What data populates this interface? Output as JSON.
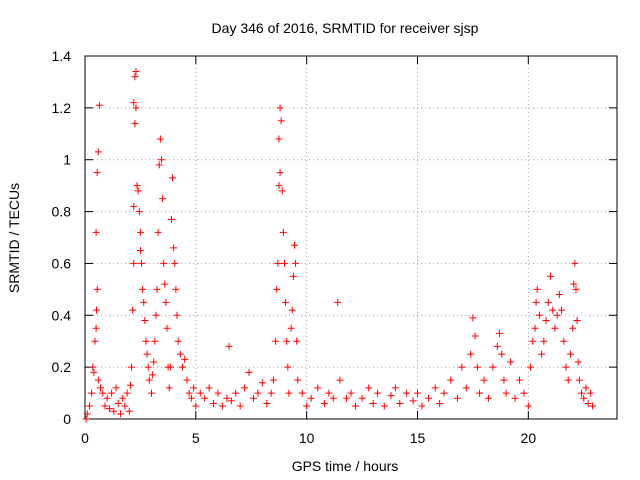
{
  "chart_data": {
    "type": "scatter",
    "title": "Day 346 of 2016, SRMTID for receiver sjsp",
    "xlabel": "GPS time / hours",
    "ylabel": "SRMTID / TECUs",
    "xlim": [
      0,
      24
    ],
    "ylim": [
      0,
      1.4
    ],
    "xticks": [
      0,
      5,
      10,
      15,
      20
    ],
    "xtick_labels": [
      "0",
      "5",
      "10",
      "15",
      "20"
    ],
    "yticks": [
      0,
      0.2,
      0.4,
      0.6,
      0.8,
      1.0,
      1.2,
      1.4
    ],
    "ytick_labels": [
      "0",
      "0.2",
      "0.4",
      "0.6",
      "0.8",
      "1",
      "1.2",
      "1.4"
    ],
    "grid": true,
    "marker": "+",
    "series": [
      {
        "name": "SRMTID",
        "color": "#ff0000",
        "points": [
          [
            0.05,
            0.0
          ],
          [
            0.1,
            0.02
          ],
          [
            0.2,
            0.05
          ],
          [
            0.3,
            0.1
          ],
          [
            0.35,
            0.2
          ],
          [
            0.4,
            0.18
          ],
          [
            0.45,
            0.3
          ],
          [
            0.5,
            0.35
          ],
          [
            0.52,
            0.42
          ],
          [
            0.55,
            0.5
          ],
          [
            0.5,
            0.72
          ],
          [
            0.55,
            0.95
          ],
          [
            0.6,
            1.03
          ],
          [
            0.65,
            1.21
          ],
          [
            0.6,
            0.15
          ],
          [
            0.7,
            0.12
          ],
          [
            0.8,
            0.1
          ],
          [
            0.9,
            0.05
          ],
          [
            1.0,
            0.08
          ],
          [
            1.1,
            0.04
          ],
          [
            1.2,
            0.1
          ],
          [
            1.3,
            0.03
          ],
          [
            1.4,
            0.12
          ],
          [
            1.5,
            0.06
          ],
          [
            1.6,
            0.02
          ],
          [
            1.7,
            0.08
          ],
          [
            1.8,
            0.05
          ],
          [
            1.9,
            0.1
          ],
          [
            2.0,
            0.03
          ],
          [
            2.05,
            0.13
          ],
          [
            2.1,
            0.2
          ],
          [
            2.15,
            0.42
          ],
          [
            2.2,
            0.6
          ],
          [
            2.2,
            0.82
          ],
          [
            2.25,
            1.14
          ],
          [
            2.2,
            1.22
          ],
          [
            2.25,
            1.32
          ],
          [
            2.3,
            1.34
          ],
          [
            2.3,
            1.2
          ],
          [
            2.35,
            0.9
          ],
          [
            2.4,
            0.88
          ],
          [
            2.45,
            0.8
          ],
          [
            2.5,
            0.72
          ],
          [
            2.5,
            0.65
          ],
          [
            2.55,
            0.6
          ],
          [
            2.6,
            0.5
          ],
          [
            2.65,
            0.45
          ],
          [
            2.7,
            0.38
          ],
          [
            2.75,
            0.3
          ],
          [
            2.8,
            0.25
          ],
          [
            2.85,
            0.2
          ],
          [
            2.9,
            0.15
          ],
          [
            3.0,
            0.1
          ],
          [
            3.05,
            0.17
          ],
          [
            3.1,
            0.22
          ],
          [
            3.15,
            0.3
          ],
          [
            3.2,
            0.4
          ],
          [
            3.25,
            0.5
          ],
          [
            3.3,
            0.72
          ],
          [
            3.35,
            0.98
          ],
          [
            3.4,
            1.08
          ],
          [
            3.45,
            1.0
          ],
          [
            3.5,
            0.85
          ],
          [
            3.55,
            0.6
          ],
          [
            3.6,
            0.52
          ],
          [
            3.65,
            0.45
          ],
          [
            3.7,
            0.35
          ],
          [
            3.75,
            0.2
          ],
          [
            3.8,
            0.12
          ],
          [
            3.85,
            0.2
          ],
          [
            3.9,
            0.77
          ],
          [
            3.95,
            0.93
          ],
          [
            4.0,
            0.66
          ],
          [
            4.05,
            0.6
          ],
          [
            4.1,
            0.5
          ],
          [
            4.15,
            0.4
          ],
          [
            4.2,
            0.3
          ],
          [
            4.3,
            0.25
          ],
          [
            4.4,
            0.2
          ],
          [
            4.5,
            0.23
          ],
          [
            4.6,
            0.15
          ],
          [
            4.7,
            0.1
          ],
          [
            4.8,
            0.08
          ],
          [
            4.9,
            0.12
          ],
          [
            5.0,
            0.05
          ],
          [
            5.2,
            0.1
          ],
          [
            5.4,
            0.08
          ],
          [
            5.6,
            0.12
          ],
          [
            5.8,
            0.06
          ],
          [
            6.0,
            0.1
          ],
          [
            6.2,
            0.05
          ],
          [
            6.4,
            0.08
          ],
          [
            6.5,
            0.28
          ],
          [
            6.6,
            0.07
          ],
          [
            6.8,
            0.1
          ],
          [
            7.0,
            0.05
          ],
          [
            7.2,
            0.12
          ],
          [
            7.4,
            0.18
          ],
          [
            7.6,
            0.08
          ],
          [
            7.8,
            0.1
          ],
          [
            8.0,
            0.14
          ],
          [
            8.2,
            0.06
          ],
          [
            8.4,
            0.1
          ],
          [
            8.5,
            0.15
          ],
          [
            8.6,
            0.3
          ],
          [
            8.65,
            0.5
          ],
          [
            8.7,
            0.6
          ],
          [
            8.75,
            0.9
          ],
          [
            8.8,
            0.95
          ],
          [
            8.75,
            1.08
          ],
          [
            8.8,
            1.2
          ],
          [
            8.85,
            1.15
          ],
          [
            8.9,
            0.88
          ],
          [
            8.95,
            0.72
          ],
          [
            9.0,
            0.6
          ],
          [
            9.05,
            0.45
          ],
          [
            9.1,
            0.3
          ],
          [
            9.15,
            0.2
          ],
          [
            9.2,
            0.1
          ],
          [
            9.3,
            0.35
          ],
          [
            9.35,
            0.42
          ],
          [
            9.4,
            0.55
          ],
          [
            9.45,
            0.67
          ],
          [
            9.5,
            0.6
          ],
          [
            9.55,
            0.3
          ],
          [
            9.6,
            0.15
          ],
          [
            9.8,
            0.1
          ],
          [
            10.0,
            0.05
          ],
          [
            10.2,
            0.08
          ],
          [
            10.5,
            0.12
          ],
          [
            10.8,
            0.06
          ],
          [
            11.0,
            0.1
          ],
          [
            11.2,
            0.08
          ],
          [
            11.4,
            0.45
          ],
          [
            11.5,
            0.15
          ],
          [
            11.8,
            0.08
          ],
          [
            12.0,
            0.1
          ],
          [
            12.2,
            0.05
          ],
          [
            12.5,
            0.08
          ],
          [
            12.8,
            0.12
          ],
          [
            13.0,
            0.06
          ],
          [
            13.2,
            0.1
          ],
          [
            13.5,
            0.05
          ],
          [
            13.8,
            0.09
          ],
          [
            14.0,
            0.12
          ],
          [
            14.2,
            0.06
          ],
          [
            14.5,
            0.1
          ],
          [
            14.8,
            0.07
          ],
          [
            15.0,
            0.1
          ],
          [
            15.2,
            0.05
          ],
          [
            15.5,
            0.08
          ],
          [
            15.8,
            0.12
          ],
          [
            16.0,
            0.06
          ],
          [
            16.2,
            0.1
          ],
          [
            16.5,
            0.15
          ],
          [
            16.8,
            0.08
          ],
          [
            17.0,
            0.2
          ],
          [
            17.2,
            0.12
          ],
          [
            17.4,
            0.25
          ],
          [
            17.5,
            0.39
          ],
          [
            17.6,
            0.32
          ],
          [
            17.7,
            0.2
          ],
          [
            17.8,
            0.1
          ],
          [
            18.0,
            0.15
          ],
          [
            18.2,
            0.08
          ],
          [
            18.4,
            0.2
          ],
          [
            18.6,
            0.28
          ],
          [
            18.7,
            0.33
          ],
          [
            18.8,
            0.25
          ],
          [
            18.9,
            0.15
          ],
          [
            19.0,
            0.1
          ],
          [
            19.2,
            0.22
          ],
          [
            19.4,
            0.08
          ],
          [
            19.6,
            0.15
          ],
          [
            19.8,
            0.1
          ],
          [
            20.0,
            0.05
          ],
          [
            20.1,
            0.2
          ],
          [
            20.2,
            0.3
          ],
          [
            20.3,
            0.35
          ],
          [
            20.35,
            0.45
          ],
          [
            20.4,
            0.5
          ],
          [
            20.5,
            0.4
          ],
          [
            20.6,
            0.25
          ],
          [
            20.7,
            0.3
          ],
          [
            20.8,
            0.38
          ],
          [
            20.9,
            0.45
          ],
          [
            21.0,
            0.55
          ],
          [
            21.1,
            0.42
          ],
          [
            21.2,
            0.35
          ],
          [
            21.3,
            0.4
          ],
          [
            21.4,
            0.48
          ],
          [
            21.5,
            0.42
          ],
          [
            21.6,
            0.3
          ],
          [
            21.7,
            0.2
          ],
          [
            21.8,
            0.15
          ],
          [
            21.9,
            0.25
          ],
          [
            22.0,
            0.35
          ],
          [
            22.05,
            0.52
          ],
          [
            22.1,
            0.6
          ],
          [
            22.15,
            0.5
          ],
          [
            22.2,
            0.38
          ],
          [
            22.25,
            0.22
          ],
          [
            22.3,
            0.15
          ],
          [
            22.4,
            0.1
          ],
          [
            22.5,
            0.08
          ],
          [
            22.6,
            0.12
          ],
          [
            22.7,
            0.06
          ],
          [
            22.8,
            0.1
          ],
          [
            22.9,
            0.05
          ]
        ]
      }
    ]
  }
}
